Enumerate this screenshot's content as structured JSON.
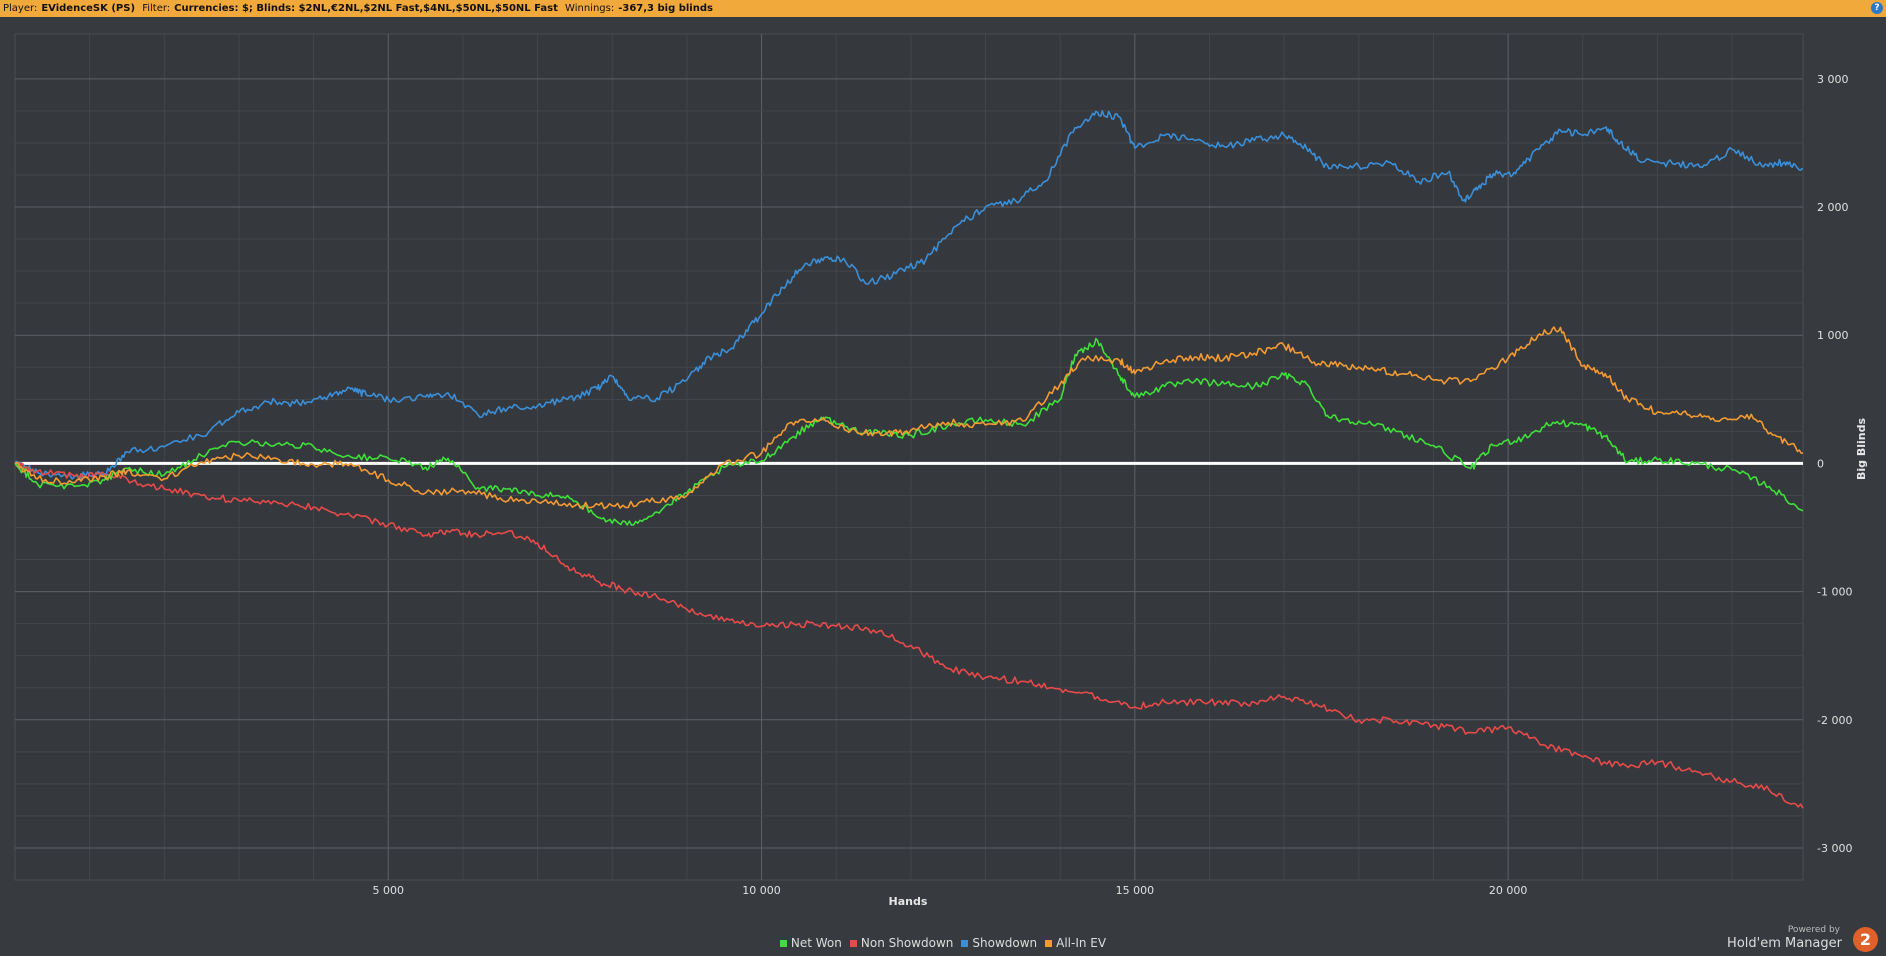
{
  "header": {
    "player_label": "Player:",
    "player_value": "EVidenceSK (PS)",
    "filter_label": "Filter:",
    "filter_value": "Currencies: $; Blinds: $2NL,€2NL,$2NL Fast,$4NL,$50NL,$50NL Fast",
    "winnings_label": "Winnings:",
    "winnings_value": "-367,3 big blinds",
    "help_label": "?"
  },
  "branding": {
    "powered_by": "Powered by",
    "product": "Hold'em Manager",
    "logo_text": "2"
  },
  "chart_data": {
    "type": "line",
    "title": "",
    "xlabel": "Hands",
    "ylabel": "Big Blinds",
    "xlim": [
      0,
      23950
    ],
    "ylim": [
      -3250,
      3350
    ],
    "xticks": [
      5000,
      10000,
      15000,
      20000
    ],
    "xtick_labels": [
      "5 000",
      "10 000",
      "15 000",
      "20 000"
    ],
    "yticks": [
      3000,
      2000,
      1000,
      0,
      -1000,
      -2000,
      -3000
    ],
    "ytick_labels": [
      "3 000",
      "2 000",
      "1 000",
      "0",
      "-1 000",
      "-2 000",
      "-3 000"
    ],
    "grid": true,
    "legend_position": "bottom",
    "background": "#373a3f",
    "series": [
      {
        "name": "Showdown",
        "color": "#3b8fd8",
        "points": [
          [
            0,
            0
          ],
          [
            300,
            -70
          ],
          [
            800,
            -100
          ],
          [
            1200,
            -80
          ],
          [
            1500,
            90
          ],
          [
            2000,
            130
          ],
          [
            2600,
            250
          ],
          [
            3000,
            400
          ],
          [
            3400,
            480
          ],
          [
            3800,
            470
          ],
          [
            4200,
            530
          ],
          [
            4500,
            580
          ],
          [
            4700,
            540
          ],
          [
            5000,
            500
          ],
          [
            5500,
            520
          ],
          [
            5800,
            550
          ],
          [
            6200,
            380
          ],
          [
            6600,
            430
          ],
          [
            7000,
            450
          ],
          [
            7400,
            500
          ],
          [
            7800,
            580
          ],
          [
            8000,
            680
          ],
          [
            8200,
            520
          ],
          [
            8600,
            510
          ],
          [
            9000,
            650
          ],
          [
            9300,
            830
          ],
          [
            9600,
            900
          ],
          [
            9900,
            1100
          ],
          [
            10200,
            1310
          ],
          [
            10500,
            1510
          ],
          [
            10800,
            1600
          ],
          [
            11100,
            1600
          ],
          [
            11400,
            1400
          ],
          [
            11800,
            1480
          ],
          [
            12200,
            1590
          ],
          [
            12600,
            1850
          ],
          [
            13000,
            2000
          ],
          [
            13400,
            2050
          ],
          [
            13800,
            2200
          ],
          [
            14200,
            2620
          ],
          [
            14500,
            2740
          ],
          [
            14800,
            2700
          ],
          [
            15000,
            2460
          ],
          [
            15400,
            2560
          ],
          [
            15800,
            2520
          ],
          [
            16200,
            2470
          ],
          [
            16600,
            2520
          ],
          [
            17000,
            2560
          ],
          [
            17300,
            2460
          ],
          [
            17600,
            2300
          ],
          [
            18000,
            2320
          ],
          [
            18400,
            2350
          ],
          [
            18800,
            2200
          ],
          [
            19200,
            2270
          ],
          [
            19400,
            2050
          ],
          [
            19600,
            2150
          ],
          [
            19800,
            2260
          ],
          [
            20100,
            2260
          ],
          [
            20400,
            2450
          ],
          [
            20700,
            2600
          ],
          [
            21000,
            2560
          ],
          [
            21300,
            2620
          ],
          [
            21500,
            2500
          ],
          [
            21800,
            2350
          ],
          [
            22200,
            2340
          ],
          [
            22600,
            2310
          ],
          [
            23000,
            2450
          ],
          [
            23400,
            2320
          ],
          [
            23700,
            2350
          ],
          [
            23950,
            2300
          ]
        ]
      },
      {
        "name": "Non Showdown",
        "color": "#e84a4a",
        "points": [
          [
            0,
            0
          ],
          [
            300,
            -60
          ],
          [
            800,
            -100
          ],
          [
            1200,
            -90
          ],
          [
            1500,
            -120
          ],
          [
            2000,
            -200
          ],
          [
            2500,
            -250
          ],
          [
            3000,
            -290
          ],
          [
            3500,
            -300
          ],
          [
            4000,
            -340
          ],
          [
            4500,
            -410
          ],
          [
            5000,
            -480
          ],
          [
            5500,
            -560
          ],
          [
            5800,
            -530
          ],
          [
            6200,
            -560
          ],
          [
            6600,
            -530
          ],
          [
            7000,
            -620
          ],
          [
            7400,
            -800
          ],
          [
            7800,
            -920
          ],
          [
            8200,
            -990
          ],
          [
            8600,
            -1040
          ],
          [
            9000,
            -1140
          ],
          [
            9500,
            -1230
          ],
          [
            10000,
            -1270
          ],
          [
            10500,
            -1250
          ],
          [
            11000,
            -1270
          ],
          [
            11500,
            -1300
          ],
          [
            12000,
            -1420
          ],
          [
            12500,
            -1600
          ],
          [
            13000,
            -1670
          ],
          [
            13500,
            -1700
          ],
          [
            14000,
            -1760
          ],
          [
            14500,
            -1820
          ],
          [
            15000,
            -1900
          ],
          [
            15400,
            -1860
          ],
          [
            16000,
            -1860
          ],
          [
            16500,
            -1880
          ],
          [
            17000,
            -1820
          ],
          [
            17500,
            -1900
          ],
          [
            18000,
            -2000
          ],
          [
            18500,
            -2010
          ],
          [
            19000,
            -2040
          ],
          [
            19500,
            -2100
          ],
          [
            20000,
            -2060
          ],
          [
            20500,
            -2200
          ],
          [
            21000,
            -2290
          ],
          [
            21500,
            -2360
          ],
          [
            22000,
            -2330
          ],
          [
            22500,
            -2400
          ],
          [
            23000,
            -2480
          ],
          [
            23500,
            -2550
          ],
          [
            23950,
            -2690
          ]
        ]
      },
      {
        "name": "Net Won",
        "color": "#3ee03a",
        "points": [
          [
            0,
            0
          ],
          [
            300,
            -160
          ],
          [
            800,
            -180
          ],
          [
            1200,
            -130
          ],
          [
            1500,
            -40
          ],
          [
            2000,
            -90
          ],
          [
            2500,
            60
          ],
          [
            3000,
            170
          ],
          [
            3500,
            150
          ],
          [
            4000,
            130
          ],
          [
            4500,
            50
          ],
          [
            5000,
            40
          ],
          [
            5500,
            -30
          ],
          [
            5800,
            40
          ],
          [
            6200,
            -190
          ],
          [
            6600,
            -200
          ],
          [
            7000,
            -250
          ],
          [
            7400,
            -250
          ],
          [
            7800,
            -420
          ],
          [
            8200,
            -480
          ],
          [
            8600,
            -380
          ],
          [
            9000,
            -230
          ],
          [
            9500,
            -30
          ],
          [
            10000,
            20
          ],
          [
            10400,
            200
          ],
          [
            10800,
            360
          ],
          [
            11200,
            270
          ],
          [
            11600,
            230
          ],
          [
            12000,
            220
          ],
          [
            12500,
            300
          ],
          [
            13000,
            340
          ],
          [
            13500,
            300
          ],
          [
            14000,
            500
          ],
          [
            14200,
            850
          ],
          [
            14500,
            960
          ],
          [
            14800,
            680
          ],
          [
            15000,
            520
          ],
          [
            15400,
            600
          ],
          [
            15800,
            640
          ],
          [
            16200,
            620
          ],
          [
            16600,
            600
          ],
          [
            17000,
            690
          ],
          [
            17300,
            620
          ],
          [
            17600,
            360
          ],
          [
            18000,
            330
          ],
          [
            18500,
            250
          ],
          [
            19000,
            140
          ],
          [
            19500,
            -40
          ],
          [
            19800,
            140
          ],
          [
            20200,
            200
          ],
          [
            20600,
            320
          ],
          [
            21000,
            300
          ],
          [
            21300,
            210
          ],
          [
            21600,
            10
          ],
          [
            22000,
            30
          ],
          [
            22500,
            0
          ],
          [
            23000,
            -50
          ],
          [
            23500,
            -180
          ],
          [
            23950,
            -370
          ]
        ]
      },
      {
        "name": "All-In EV",
        "color": "#f49a32",
        "points": [
          [
            0,
            0
          ],
          [
            300,
            -120
          ],
          [
            800,
            -150
          ],
          [
            1200,
            -100
          ],
          [
            1500,
            -60
          ],
          [
            2000,
            -120
          ],
          [
            2500,
            10
          ],
          [
            3000,
            60
          ],
          [
            3500,
            40
          ],
          [
            4000,
            -10
          ],
          [
            4500,
            0
          ],
          [
            5000,
            -130
          ],
          [
            5500,
            -230
          ],
          [
            6000,
            -210
          ],
          [
            6500,
            -270
          ],
          [
            7000,
            -300
          ],
          [
            7500,
            -330
          ],
          [
            8000,
            -330
          ],
          [
            8500,
            -300
          ],
          [
            9000,
            -250
          ],
          [
            9500,
            0
          ],
          [
            10000,
            80
          ],
          [
            10400,
            320
          ],
          [
            10800,
            340
          ],
          [
            11200,
            260
          ],
          [
            11600,
            220
          ],
          [
            12000,
            260
          ],
          [
            12500,
            320
          ],
          [
            13000,
            300
          ],
          [
            13500,
            330
          ],
          [
            14000,
            620
          ],
          [
            14300,
            820
          ],
          [
            14800,
            800
          ],
          [
            15000,
            700
          ],
          [
            15400,
            800
          ],
          [
            15800,
            830
          ],
          [
            16200,
            820
          ],
          [
            16600,
            860
          ],
          [
            17000,
            920
          ],
          [
            17400,
            790
          ],
          [
            17800,
            760
          ],
          [
            18200,
            730
          ],
          [
            18600,
            700
          ],
          [
            19000,
            650
          ],
          [
            19500,
            640
          ],
          [
            20000,
            820
          ],
          [
            20400,
            1000
          ],
          [
            20700,
            1060
          ],
          [
            21000,
            760
          ],
          [
            21300,
            700
          ],
          [
            21600,
            500
          ],
          [
            22000,
            400
          ],
          [
            22400,
            380
          ],
          [
            22800,
            330
          ],
          [
            23200,
            380
          ],
          [
            23600,
            210
          ],
          [
            23950,
            80
          ]
        ]
      }
    ]
  }
}
